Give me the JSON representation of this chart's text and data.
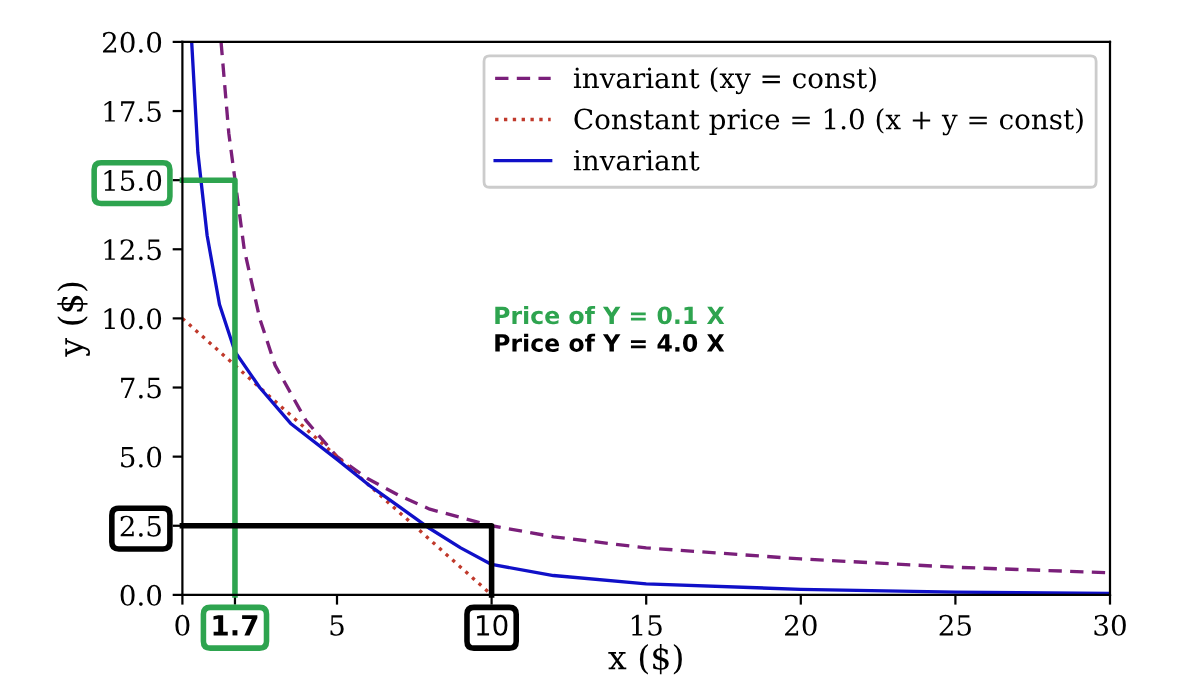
{
  "chart_data": {
    "type": "line",
    "ylabel": "y ($)",
    "xlabel": "x ($)",
    "xlim": [
      0,
      30
    ],
    "ylim": [
      0,
      20
    ],
    "xticks": [
      0,
      {
        "value": 1.7,
        "label": "1.7"
      },
      5,
      10,
      15,
      20,
      25,
      30
    ],
    "yticks": [
      {
        "value": 0,
        "label": "0.0"
      },
      2.5,
      {
        "value": 5,
        "label": "5.0"
      },
      7.5,
      {
        "value": 10,
        "label": "10.0"
      },
      12.5,
      {
        "value": 15,
        "label": "15.0"
      },
      17.5,
      {
        "value": 20,
        "label": "20.0"
      }
    ],
    "legend": "top right",
    "grid": false,
    "annotations": [
      "Price of Y = 0.1 X",
      "Price of Y = 4.0 X"
    ],
    "series": [
      {
        "name": "invariant (xy = const)",
        "color": "#7a1f7a",
        "line_style": "dashed",
        "x": [
          1.25,
          1.5,
          2,
          2.5,
          3,
          4,
          5,
          6,
          7,
          8,
          10,
          12,
          15,
          20,
          25,
          30
        ],
        "values": [
          20,
          16.7,
          12.5,
          10,
          8.3,
          6.3,
          5,
          4.2,
          3.6,
          3.1,
          2.5,
          2.1,
          1.7,
          1.3,
          1.0,
          0.8
        ]
      },
      {
        "name": "Constant price = 1.0 (x + y = const)",
        "color": "#c0392b",
        "line_style": "dotted",
        "x": [
          0,
          10
        ],
        "values": [
          10,
          0
        ]
      },
      {
        "name": "invariant",
        "color": "#1010c8",
        "line_style": "solid",
        "x": [
          0.3,
          0.5,
          0.8,
          1.2,
          1.7,
          2.5,
          3.5,
          5,
          6,
          7,
          8,
          9,
          10,
          12,
          15,
          20,
          25,
          30
        ],
        "values": [
          20,
          16,
          13,
          10.5,
          8.8,
          7.5,
          6.2,
          4.9,
          4.0,
          3.2,
          2.4,
          1.7,
          1.1,
          0.7,
          0.4,
          0.2,
          0.1,
          0.05
        ]
      },
      {
        "color": "#2ea44f",
        "line_style": "solid",
        "x": [
          0,
          1.7,
          1.7
        ],
        "values": [
          15,
          15,
          0
        ]
      },
      {
        "color": "#000000",
        "line_style": "solid",
        "x": [
          0,
          10,
          10
        ],
        "values": [
          2.5,
          2.5,
          0
        ]
      }
    ]
  }
}
